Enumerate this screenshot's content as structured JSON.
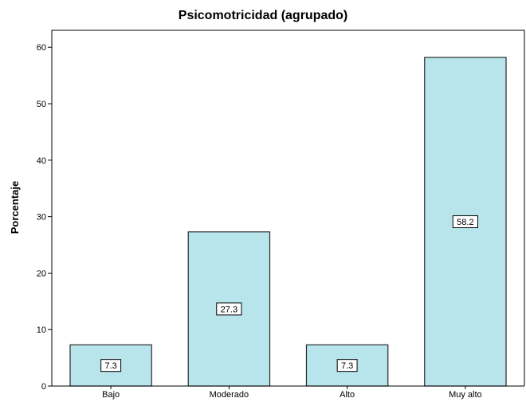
{
  "chart_data": {
    "type": "bar",
    "title": "Psicomotricidad (agrupado)",
    "xlabel": "",
    "ylabel": "Porcentaje",
    "categories": [
      "Bajo",
      "Moderado",
      "Alto",
      "Muy alto"
    ],
    "values": [
      7.3,
      27.3,
      7.3,
      58.2
    ],
    "data_labels": [
      "7.3",
      "27.3",
      "7.3",
      "58.2"
    ],
    "yticks": [
      0,
      10,
      20,
      30,
      40,
      50,
      60
    ],
    "ylim": [
      0,
      63
    ],
    "grid": false,
    "bar_color": "#b8e4ec",
    "bar_edge_color": "#2b2b2b"
  }
}
